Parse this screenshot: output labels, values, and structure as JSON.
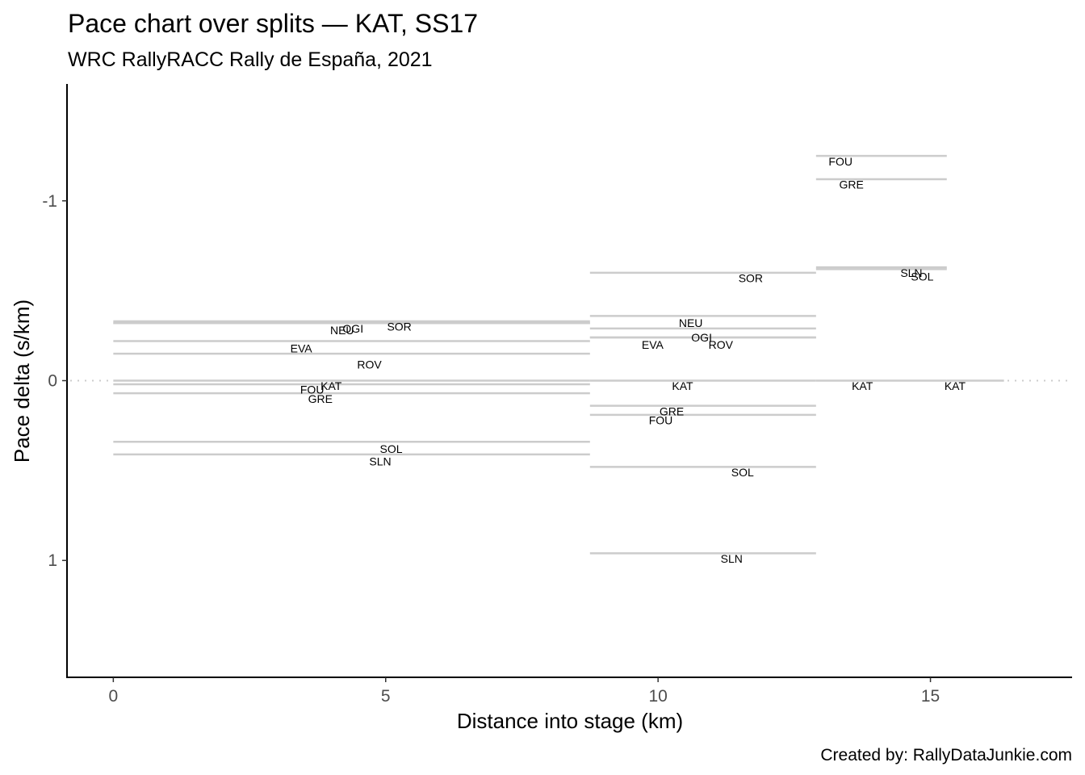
{
  "chart_data": {
    "type": "line",
    "title": "Pace chart over splits — KAT, SS17",
    "subtitle": "WRC RallyRACC Rally de España, 2021",
    "xlabel": "Distance into stage (km)",
    "ylabel": "Pace delta (s/km)",
    "caption": "Created by: RallyDataJunkie.com",
    "xlim": [
      -0.85,
      17.6
    ],
    "ylim": [
      1.65,
      -1.65
    ],
    "y_reversed": true,
    "xticks": [
      0,
      5,
      10,
      15
    ],
    "xtick_labels": [
      "0",
      "5",
      "10",
      "15"
    ],
    "yticks": [
      -1,
      0,
      1
    ],
    "ytick_labels": [
      "-1",
      "0",
      "1"
    ],
    "reference_line": {
      "y": 0,
      "x_range": [
        -0.85,
        17.6
      ],
      "style": "dotted"
    },
    "segments": [
      {
        "driver": "SOR",
        "x_start": 0,
        "x_end": 8.75,
        "pace": -0.33,
        "label_x": 5.25
      },
      {
        "driver": "NEU",
        "x_start": 0,
        "x_end": 8.75,
        "pace": -0.32,
        "label_x": 4.2
      },
      {
        "driver": "OGI",
        "x_start": 0,
        "x_end": 8.75,
        "pace": -0.32,
        "label_x": 4.4
      },
      {
        "driver": "EVA",
        "x_start": 0,
        "x_end": 8.75,
        "pace": -0.22,
        "label_x": 3.45
      },
      {
        "driver": "ROV",
        "x_start": 0,
        "x_end": 8.75,
        "pace": -0.15,
        "label_x": 4.7
      },
      {
        "driver": "KAT",
        "x_start": 0,
        "x_end": 8.75,
        "pace": 0,
        "label_x": 4.0
      },
      {
        "driver": "FOU",
        "x_start": 0,
        "x_end": 8.75,
        "pace": 0.02,
        "label_x": 3.65
      },
      {
        "driver": "GRE",
        "x_start": 0,
        "x_end": 8.75,
        "pace": 0.07,
        "label_x": 3.8
      },
      {
        "driver": "SOL",
        "x_start": 0,
        "x_end": 8.75,
        "pace": 0.34,
        "label_x": 5.1
      },
      {
        "driver": "SLN",
        "x_start": 0,
        "x_end": 8.75,
        "pace": 0.41,
        "label_x": 4.9
      },
      {
        "driver": "SOR",
        "x_start": 8.75,
        "x_end": 12.9,
        "pace": -0.6,
        "label_x": 11.7
      },
      {
        "driver": "NEU",
        "x_start": 8.75,
        "x_end": 12.9,
        "pace": -0.36,
        "label_x": 10.6
      },
      {
        "driver": "OGI",
        "x_start": 8.75,
        "x_end": 12.9,
        "pace": -0.29,
        "label_x": 10.8
      },
      {
        "driver": "EVA",
        "x_start": 8.75,
        "x_end": 12.9,
        "pace": -0.24,
        "label_x": 9.9
      },
      {
        "driver": "ROV",
        "x_start": 8.75,
        "x_end": 12.9,
        "pace": -0.24,
        "label_x": 11.15
      },
      {
        "driver": "KAT",
        "x_start": 8.75,
        "x_end": 12.9,
        "pace": 0,
        "label_x": 10.45
      },
      {
        "driver": "GRE",
        "x_start": 8.75,
        "x_end": 12.9,
        "pace": 0.14,
        "label_x": 10.25
      },
      {
        "driver": "FOU",
        "x_start": 8.75,
        "x_end": 12.9,
        "pace": 0.19,
        "label_x": 10.05
      },
      {
        "driver": "SOL",
        "x_start": 8.75,
        "x_end": 12.9,
        "pace": 0.48,
        "label_x": 11.55
      },
      {
        "driver": "SLN",
        "x_start": 8.75,
        "x_end": 12.9,
        "pace": 0.96,
        "label_x": 11.35
      },
      {
        "driver": "FOU",
        "x_start": 12.9,
        "x_end": 15.3,
        "pace": -1.25,
        "label_x": 13.35
      },
      {
        "driver": "GRE",
        "x_start": 12.9,
        "x_end": 15.3,
        "pace": -1.12,
        "label_x": 13.55
      },
      {
        "driver": "SLN",
        "x_start": 12.9,
        "x_end": 15.3,
        "pace": -0.63,
        "label_x": 14.65
      },
      {
        "driver": "SOL",
        "x_start": 12.9,
        "x_end": 15.3,
        "pace": -0.62,
        "label_x": 14.85
      },
      {
        "driver": "KAT",
        "x_start": 12.9,
        "x_end": 15.3,
        "pace": 0,
        "label_x": 13.75
      },
      {
        "driver": "KAT",
        "x_start": 15.3,
        "x_end": 16.35,
        "pace": 0,
        "label_x": 15.45
      }
    ],
    "label_offsets_y": [
      0.03,
      0.04,
      0.03,
      0.04,
      0.06,
      0.03,
      0.03,
      0.03,
      0.04,
      0.04,
      0.03,
      0.04,
      0.05,
      0.04,
      0.04,
      0.03,
      0.03,
      0.03,
      0.03,
      0.03,
      0.03,
      0.03,
      0.03,
      0.04,
      0.03,
      0.03
    ],
    "colors": {
      "segment": "#cccccc",
      "reference": "#cccccc",
      "axis": "#000000",
      "tick_text": "#4d4d4d"
    }
  }
}
